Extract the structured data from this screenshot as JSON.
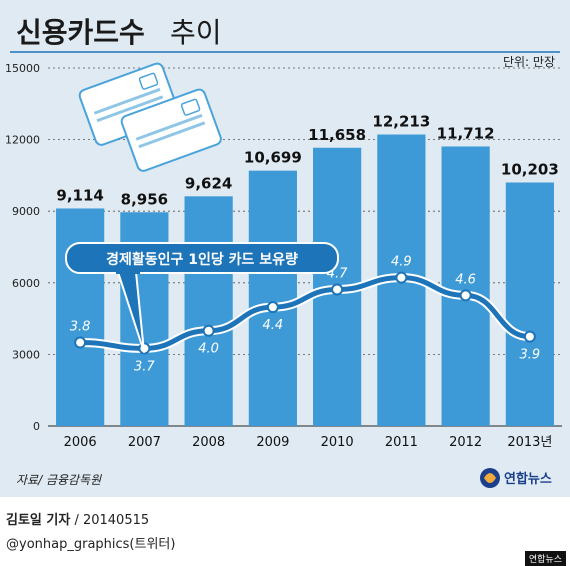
{
  "chart_data": {
    "type": "bar",
    "title": "신용카드수",
    "subtitle": "추이",
    "unit": "단위: 만장",
    "categories": [
      "2006",
      "2007",
      "2008",
      "2009",
      "2010",
      "2011",
      "2012",
      "2013년"
    ],
    "series": [
      {
        "values": [
          9114,
          8956,
          9624,
          10699,
          11658,
          12213,
          11712,
          10203
        ]
      },
      {
        "name": "경제활동인구 1인당 카드 보유량",
        "type": "line",
        "values": [
          3.8,
          3.7,
          4.0,
          4.4,
          4.7,
          4.9,
          4.6,
          3.9
        ]
      }
    ],
    "bar_labels": [
      "9,114",
      "8,956",
      "9,624",
      "10,699",
      "11,658",
      "12,213",
      "11,712",
      "10,203"
    ],
    "line_labels": [
      "3.8",
      "3.7",
      "4.0",
      "4.4",
      "4.7",
      "4.9",
      "4.6",
      "3.9"
    ],
    "yticks": [
      0,
      3000,
      6000,
      9000,
      12000,
      15000
    ],
    "ylim": [
      0,
      15000
    ],
    "bar_color": "#3d9ad6",
    "line_color": "#1e74b9",
    "source": "자료/ 금융감독원",
    "logo": "연합뉴스"
  },
  "footer": {
    "reporter": "김토일 기자",
    "date": " / 20140515",
    "handle": "@yonhap_graphics(트위터)",
    "badge": "연합뉴스"
  }
}
